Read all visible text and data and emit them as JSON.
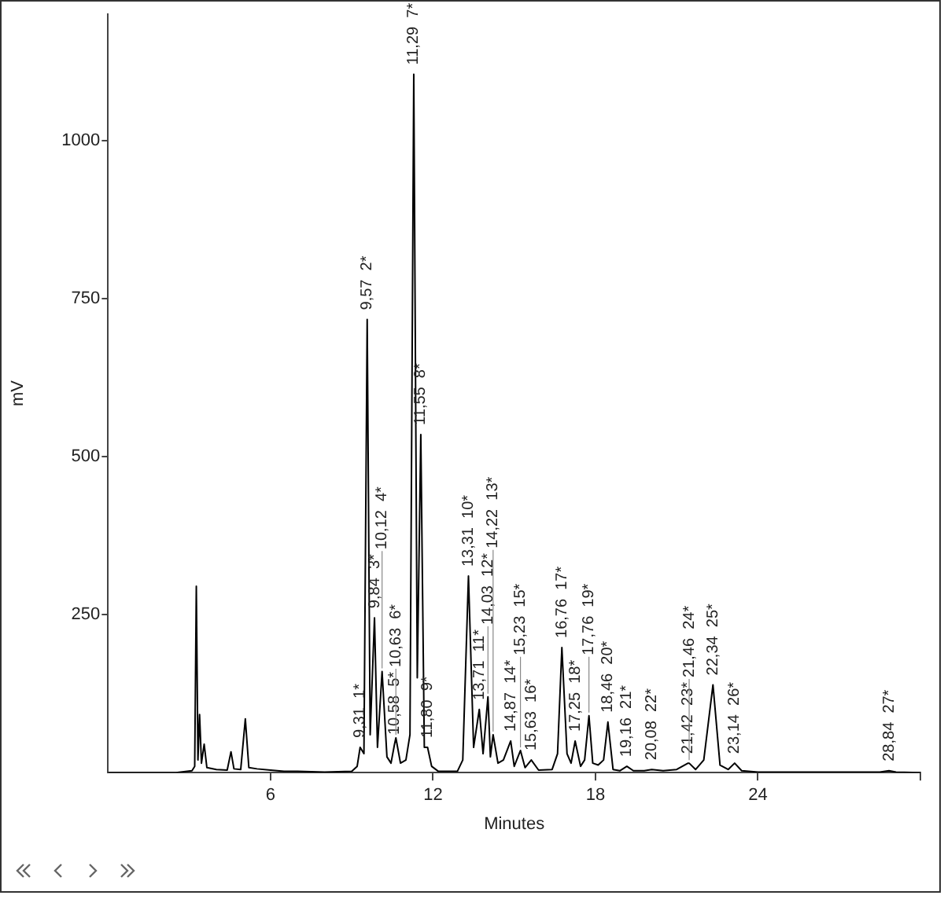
{
  "chart_data": {
    "type": "line",
    "xlabel": "Minutes",
    "ylabel": "mV",
    "color": "#000000",
    "marker": "none",
    "line_style": "solid",
    "xlim": [
      0,
      30
    ],
    "xticks": [
      6,
      12,
      18,
      24,
      {
        "value": 30,
        "label": null
      }
    ],
    "ylim": [
      0,
      1200
    ],
    "yticks": [
      250,
      500,
      750,
      1000
    ],
    "x": [
      0,
      2.5,
      3.1,
      3.2,
      3.26,
      3.32,
      3.38,
      3.45,
      3.55,
      3.65,
      4.0,
      4.4,
      4.54,
      4.65,
      4.9,
      5.07,
      5.2,
      5.5,
      6.0,
      6.5,
      7.0,
      8.0,
      9.0,
      9.2,
      9.31,
      9.45,
      9.57,
      9.68,
      9.84,
      9.95,
      10.12,
      10.3,
      10.45,
      10.58,
      10.63,
      10.8,
      11.0,
      11.15,
      11.29,
      11.42,
      11.55,
      11.68,
      11.8,
      11.95,
      12.2,
      12.9,
      13.1,
      13.31,
      13.5,
      13.71,
      13.85,
      14.03,
      14.12,
      14.22,
      14.4,
      14.6,
      14.87,
      15.0,
      15.23,
      15.4,
      15.63,
      15.9,
      16.4,
      16.6,
      16.76,
      16.95,
      17.1,
      17.25,
      17.45,
      17.6,
      17.76,
      17.9,
      18.1,
      18.3,
      18.46,
      18.65,
      18.9,
      19.16,
      19.4,
      19.8,
      20.08,
      20.5,
      21.0,
      21.42,
      21.46,
      21.7,
      22.0,
      22.34,
      22.6,
      22.9,
      23.14,
      23.4,
      24,
      26,
      28.5,
      28.84,
      29.1,
      30
    ],
    "values": [
      0,
      0,
      3,
      10,
      295,
      20,
      92,
      15,
      45,
      8,
      5,
      4,
      33,
      6,
      5,
      85,
      8,
      6,
      4,
      2,
      2,
      1,
      2,
      10,
      40,
      30,
      717,
      60,
      245,
      40,
      160,
      25,
      15,
      45,
      55,
      15,
      20,
      60,
      1105,
      150,
      535,
      40,
      40,
      10,
      2,
      2,
      20,
      311,
      40,
      100,
      30,
      120,
      25,
      60,
      15,
      20,
      50,
      10,
      35,
      8,
      20,
      4,
      5,
      30,
      198,
      30,
      15,
      50,
      10,
      20,
      90,
      15,
      12,
      20,
      80,
      5,
      3,
      10,
      3,
      3,
      5,
      3,
      5,
      15,
      15,
      5,
      20,
      139,
      12,
      5,
      15,
      3,
      1,
      1,
      1,
      3,
      1,
      0
    ],
    "annotations": [
      {
        "text": "9,31  1*",
        "x": 9.31,
        "y": 40
      },
      {
        "text": "9,57  2*",
        "x": 9.57,
        "y": 717
      },
      {
        "text": "9,84  3*",
        "x": 9.84,
        "y": 245
      },
      {
        "text": "10,12  4*",
        "x": 10.12,
        "y": 160
      },
      {
        "text": "10,58  5*",
        "x": 10.58,
        "y": 45
      },
      {
        "text": "10,63  6*",
        "x": 10.63,
        "y": 55
      },
      {
        "text": "11,29  7*",
        "x": 11.29,
        "y": 1105
      },
      {
        "text": "11,55  8*",
        "x": 11.55,
        "y": 535
      },
      {
        "text": "11,80  9*",
        "x": 11.8,
        "y": 40
      },
      {
        "text": "13,31  10*",
        "x": 13.31,
        "y": 311
      },
      {
        "text": "13,71  11*",
        "x": 13.71,
        "y": 100
      },
      {
        "text": "14,03  12*",
        "x": 14.03,
        "y": 120
      },
      {
        "text": "14,22  13*",
        "x": 14.22,
        "y": 60
      },
      {
        "text": "14,87  14*",
        "x": 14.87,
        "y": 50
      },
      {
        "text": "15,23  15*",
        "x": 15.23,
        "y": 35
      },
      {
        "text": "15,63  16*",
        "x": 15.63,
        "y": 20
      },
      {
        "text": "16,76  17*",
        "x": 16.76,
        "y": 198
      },
      {
        "text": "17,25  18*",
        "x": 17.25,
        "y": 50
      },
      {
        "text": "17,76  19*",
        "x": 17.76,
        "y": 90
      },
      {
        "text": "18,46  20*",
        "x": 18.46,
        "y": 80
      },
      {
        "text": "19,16  21*",
        "x": 19.16,
        "y": 10
      },
      {
        "text": "20,08  22*",
        "x": 20.08,
        "y": 5
      },
      {
        "text": "21,42  23*",
        "x": 21.42,
        "y": 15
      },
      {
        "text": "21,46  24*",
        "x": 21.46,
        "y": 15
      },
      {
        "text": "22,34  25*",
        "x": 22.34,
        "y": 139
      },
      {
        "text": "23,14  26*",
        "x": 23.14,
        "y": 15
      },
      {
        "text": "28,84  27*",
        "x": 28.84,
        "y": 3
      }
    ]
  }
}
